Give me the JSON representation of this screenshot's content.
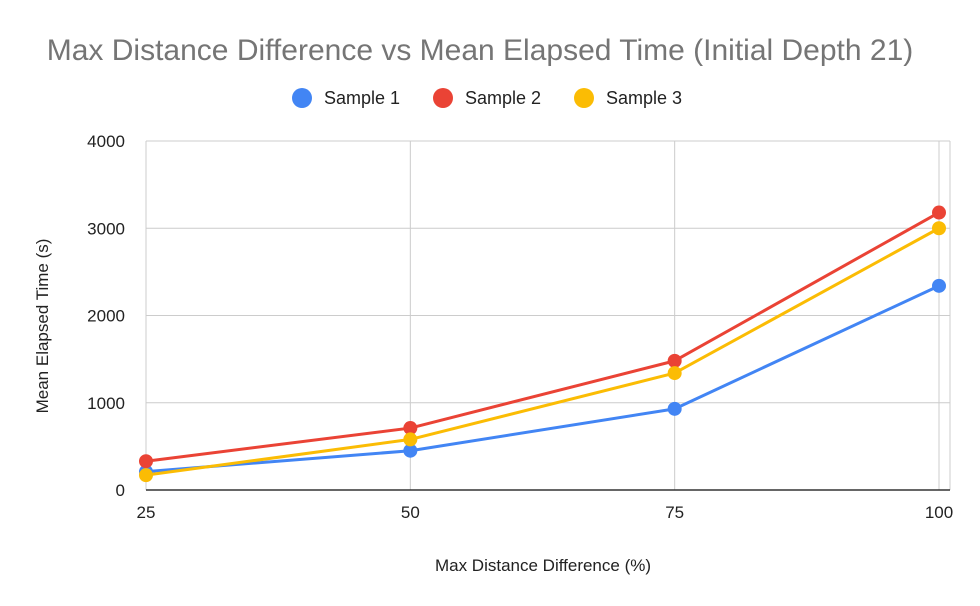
{
  "chart_data": {
    "type": "line",
    "title": "Max Distance Difference vs Mean Elapsed Time (Initial Depth 21)",
    "xlabel": "Max Distance Difference (%)",
    "ylabel": "Mean Elapsed Time (s)",
    "x": [
      25,
      50,
      75,
      100
    ],
    "x_tick_labels": [
      "25",
      "50",
      "75",
      "100"
    ],
    "ylim": [
      0,
      4000
    ],
    "y_ticks": [
      0,
      1000,
      2000,
      3000,
      4000
    ],
    "y_tick_labels": [
      "0",
      "1000",
      "2000",
      "3000",
      "4000"
    ],
    "grid": true,
    "legend_position": "top-center",
    "series": [
      {
        "name": "Sample 1",
        "color": "#4285f4",
        "values": [
          210,
          450,
          930,
          2340
        ]
      },
      {
        "name": "Sample 2",
        "color": "#ea4335",
        "values": [
          330,
          710,
          1480,
          3180
        ]
      },
      {
        "name": "Sample 3",
        "color": "#fbbc04",
        "values": [
          170,
          580,
          1340,
          3000
        ]
      }
    ]
  }
}
